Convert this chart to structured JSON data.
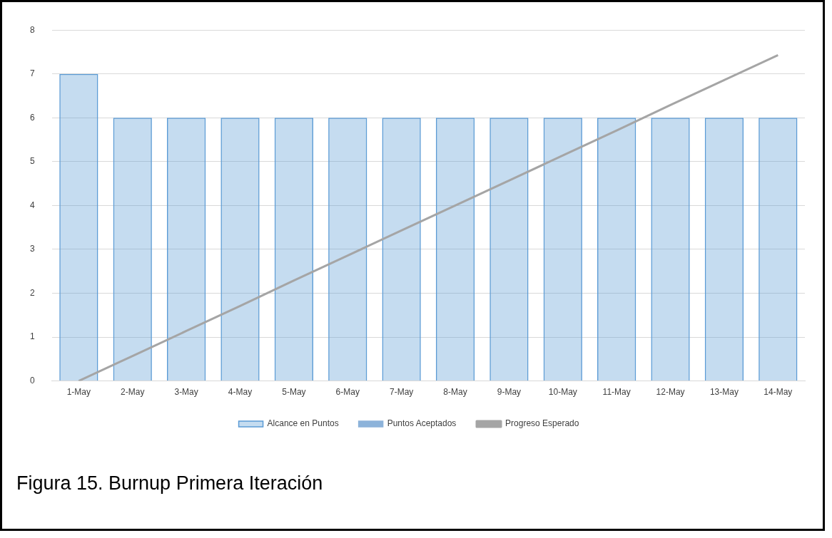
{
  "chart_data": {
    "type": "bar",
    "categories": [
      "1-May",
      "2-May",
      "3-May",
      "4-May",
      "5-May",
      "6-May",
      "7-May",
      "8-May",
      "9-May",
      "10-May",
      "11-May",
      "12-May",
      "13-May",
      "14-May"
    ],
    "series": [
      {
        "name": "Alcance en Puntos",
        "color": "#5b9bd5",
        "values": [
          7,
          6,
          6,
          6,
          6,
          6,
          6,
          6,
          6,
          6,
          6,
          6,
          6,
          6
        ]
      },
      {
        "name": "Puntos Aceptados",
        "color": "#8db3da",
        "values": [
          null,
          null,
          null,
          null,
          null,
          null,
          null,
          null,
          null,
          null,
          null,
          null,
          null,
          null
        ]
      },
      {
        "name": "Progreso Esperado",
        "type": "line",
        "color": "#a5a5a5",
        "values": [
          0,
          0.57,
          1.14,
          1.71,
          2.29,
          2.86,
          3.43,
          4,
          4.57,
          5.14,
          5.71,
          6.29,
          6.86,
          7.43
        ]
      }
    ],
    "ylim": [
      0,
      8
    ],
    "yticks": [
      0,
      1,
      2,
      3,
      4,
      5,
      6,
      7,
      8
    ],
    "grid": "y",
    "legend": "bottom",
    "marker": "none",
    "annotations": [
      "Figura 15. Burnup Primera Iteración"
    ]
  }
}
